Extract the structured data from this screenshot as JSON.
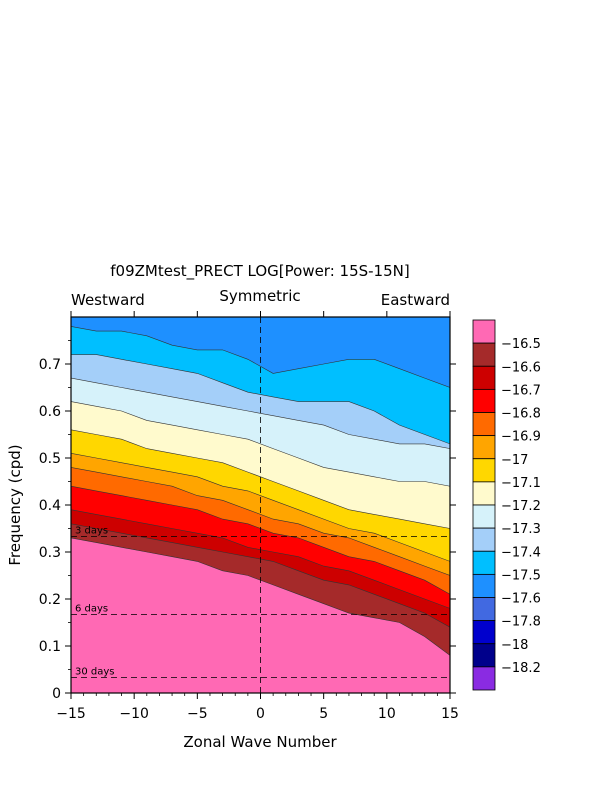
{
  "chart_data": {
    "type": "heatmap",
    "title": "f09ZMtest_PRECT LOG[Power: 15S-15N]",
    "subtitle_left": "Westward",
    "subtitle_center": "Symmetric",
    "subtitle_right": "Eastward",
    "xlabel": "Zonal Wave Number",
    "ylabel": "Frequency (cpd)",
    "xlim": [
      -15,
      15
    ],
    "ylim": [
      0,
      0.8
    ],
    "xticks": [
      -15,
      -10,
      -5,
      0,
      5,
      10,
      15
    ],
    "xtick_labels": [
      "−15",
      "−10",
      "−5",
      "0",
      "5",
      "10",
      "15"
    ],
    "yticks": [
      0,
      0.1,
      0.2,
      0.3,
      0.4,
      0.5,
      0.6,
      0.7
    ],
    "ytick_labels": [
      "0",
      "0.1",
      "0.2",
      "0.3",
      "0.4",
      "0.5",
      "0.6",
      "0.7"
    ],
    "period_lines": [
      {
        "label": "3 days",
        "frequency": 0.333
      },
      {
        "label": "6 days",
        "frequency": 0.167
      },
      {
        "label": "30 days",
        "frequency": 0.033
      }
    ],
    "vertical_reference_line": 0,
    "colorbar": {
      "levels": [
        "−16.5",
        "−16.6",
        "−16.7",
        "−16.8",
        "−16.9",
        "−17",
        "−17.1",
        "−17.2",
        "−17.3",
        "−17.4",
        "−17.5",
        "−17.6",
        "−17.8",
        "−18",
        "−18.2"
      ],
      "colors": [
        "#FF69B4",
        "#A52A2A",
        "#CD0000",
        "#FF0000",
        "#FF6A00",
        "#FFA500",
        "#FFD700",
        "#FFFACD",
        "#D6F2FA",
        "#A4CFF9",
        "#00BFFF",
        "#1E90FF",
        "#4169E1",
        "#0000CD",
        "#00008B",
        "#8A2BE2"
      ]
    },
    "contour_bands": [
      {
        "level": "> -16.5",
        "color": "#FF69B4",
        "top_freq": [
          0.33,
          0.32,
          0.31,
          0.3,
          0.29,
          0.28,
          0.26,
          0.25,
          0.23,
          0.21,
          0.19,
          0.17,
          0.16,
          0.15,
          0.12,
          0.08
        ]
      },
      {
        "level": "-16.6",
        "color": "#A52A2A",
        "top_freq": [
          0.36,
          0.35,
          0.34,
          0.33,
          0.32,
          0.31,
          0.3,
          0.29,
          0.28,
          0.26,
          0.24,
          0.23,
          0.21,
          0.19,
          0.17,
          0.14
        ]
      },
      {
        "level": "-16.7",
        "color": "#CD0000",
        "top_freq": [
          0.39,
          0.38,
          0.37,
          0.36,
          0.35,
          0.34,
          0.33,
          0.31,
          0.3,
          0.29,
          0.27,
          0.26,
          0.24,
          0.22,
          0.2,
          0.18
        ]
      },
      {
        "level": "-16.8",
        "color": "#FF0000",
        "top_freq": [
          0.44,
          0.43,
          0.42,
          0.41,
          0.4,
          0.39,
          0.37,
          0.36,
          0.34,
          0.33,
          0.31,
          0.29,
          0.28,
          0.26,
          0.24,
          0.21
        ]
      },
      {
        "level": "-16.9",
        "color": "#FF6A00",
        "top_freq": [
          0.48,
          0.47,
          0.46,
          0.45,
          0.44,
          0.42,
          0.41,
          0.39,
          0.37,
          0.36,
          0.34,
          0.33,
          0.31,
          0.29,
          0.27,
          0.25
        ]
      },
      {
        "level": "-17",
        "color": "#FFA500",
        "top_freq": [
          0.51,
          0.5,
          0.49,
          0.48,
          0.47,
          0.46,
          0.44,
          0.43,
          0.41,
          0.39,
          0.37,
          0.35,
          0.34,
          0.32,
          0.3,
          0.28
        ]
      },
      {
        "level": "-17.1",
        "color": "#FFD700",
        "top_freq": [
          0.56,
          0.55,
          0.54,
          0.52,
          0.51,
          0.5,
          0.49,
          0.47,
          0.45,
          0.43,
          0.41,
          0.39,
          0.38,
          0.37,
          0.36,
          0.35
        ]
      },
      {
        "level": "-17.2",
        "color": "#FFFACD",
        "top_freq": [
          0.62,
          0.61,
          0.6,
          0.58,
          0.57,
          0.56,
          0.55,
          0.54,
          0.52,
          0.5,
          0.48,
          0.47,
          0.46,
          0.45,
          0.45,
          0.44
        ]
      },
      {
        "level": "-17.3",
        "color": "#D6F2FA",
        "top_freq": [
          0.67,
          0.66,
          0.65,
          0.64,
          0.63,
          0.62,
          0.61,
          0.6,
          0.59,
          0.58,
          0.57,
          0.55,
          0.54,
          0.53,
          0.53,
          0.52
        ]
      },
      {
        "level": "-17.4",
        "color": "#A4CFF9",
        "top_freq": [
          0.72,
          0.72,
          0.71,
          0.7,
          0.69,
          0.68,
          0.66,
          0.64,
          0.63,
          0.62,
          0.62,
          0.62,
          0.6,
          0.57,
          0.55,
          0.53
        ]
      },
      {
        "level": "-17.5",
        "color": "#00BFFF",
        "top_freq": [
          0.78,
          0.77,
          0.77,
          0.76,
          0.74,
          0.73,
          0.73,
          0.71,
          0.68,
          0.69,
          0.7,
          0.71,
          0.71,
          0.69,
          0.67,
          0.65
        ]
      },
      {
        "level": "-17.6",
        "color": "#1E90FF",
        "top_freq": [
          0.8,
          0.8,
          0.8,
          0.8,
          0.8,
          0.8,
          0.8,
          0.8,
          0.8,
          0.8,
          0.8,
          0.8,
          0.8,
          0.8,
          0.8,
          0.8
        ]
      }
    ]
  }
}
